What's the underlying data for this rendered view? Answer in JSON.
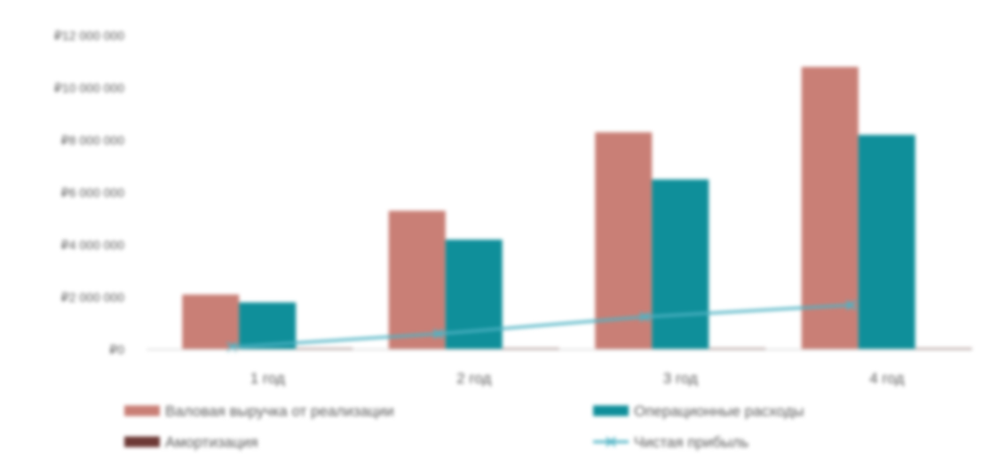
{
  "chart_data": {
    "type": "bar",
    "categories": [
      "1 год",
      "2 год",
      "3 год",
      "4 год"
    ],
    "ylim": [
      0,
      12000000
    ],
    "yticks": [
      0,
      2000000,
      4000000,
      6000000,
      8000000,
      10000000,
      12000000
    ],
    "ytick_labels": [
      "₽0",
      "₽2 000 000",
      "₽4 000 000",
      "₽6 000 000",
      "₽8 000 000",
      "₽10 000 000",
      "₽12 000 000"
    ],
    "grid": false,
    "legend_position": "bottom",
    "series": [
      {
        "name": "Валовая выручка от реализации",
        "type": "bar",
        "color": "#c97f76",
        "values": [
          2100000,
          5300000,
          8300000,
          10800000
        ]
      },
      {
        "name": "Операционные расходы",
        "type": "bar",
        "color": "#0f8f9a",
        "values": [
          1800000,
          4200000,
          6500000,
          8200000
        ]
      },
      {
        "name": "Амортизация",
        "type": "bar",
        "color": "#6e3a36",
        "values": [
          20000,
          20000,
          20000,
          20000
        ]
      },
      {
        "name": "Чистая прибыль",
        "type": "line",
        "color": "#4fb3c4",
        "values": [
          100000,
          600000,
          1250000,
          1700000
        ]
      }
    ]
  }
}
